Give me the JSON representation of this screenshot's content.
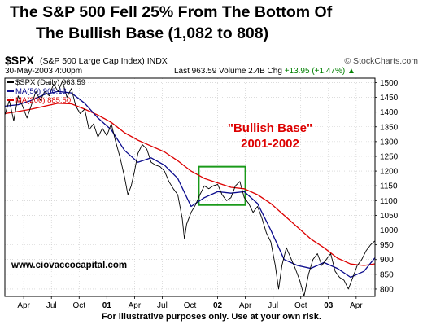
{
  "title": {
    "line1": "The S&P 500 Fell 25% From The Bottom Of",
    "line2": "The Bullish Base  (1,082 to 808)"
  },
  "header": {
    "ticker": "$SPX",
    "description": "(S&P 500 Large Cap Index) INDX",
    "date": "30-May-2003 4:00pm",
    "last": "Last 963.59",
    "volume": "Volume 2.4B",
    "chg_label": "Chg",
    "chg": "+13.95 (+1.47%)",
    "chg_arrow": "▲",
    "source": "© StockCharts.com"
  },
  "legend": {
    "price": "$SPX (Daily) 963.59",
    "ma50": "MA(50) 906.13",
    "ma200": "MA(200) 885.50"
  },
  "annotation": {
    "line1": "\"Bullish Base\"",
    "line2": "2001-2002"
  },
  "watermark": "www.ciovaccocapital.com",
  "footer": "For illustrative purposes only. Use at your own risk.",
  "colors": {
    "price": "#000000",
    "ma50": "#0a0a8c",
    "ma200": "#dd0000",
    "box": "#1a9a1a",
    "annotation": "#dd0000",
    "grid": "#c8c8c8"
  },
  "chart_data": {
    "type": "line",
    "xlabel": "",
    "ylabel": "",
    "x_ticks": [
      {
        "label": "Apr",
        "t": 2000.25
      },
      {
        "label": "Jul",
        "t": 2000.5
      },
      {
        "label": "Oct",
        "t": 2000.75
      },
      {
        "label": "01",
        "t": 2001.0,
        "bold": true
      },
      {
        "label": "Apr",
        "t": 2001.25
      },
      {
        "label": "Jul",
        "t": 2001.5
      },
      {
        "label": "Oct",
        "t": 2001.75
      },
      {
        "label": "02",
        "t": 2002.0,
        "bold": true
      },
      {
        "label": "Apr",
        "t": 2002.25
      },
      {
        "label": "Jul",
        "t": 2002.5
      },
      {
        "label": "Oct",
        "t": 2002.75
      },
      {
        "label": "03",
        "t": 2003.0,
        "bold": true
      },
      {
        "label": "Apr",
        "t": 2003.25
      }
    ],
    "y_ticks": [
      800,
      850,
      900,
      950,
      1000,
      1050,
      1100,
      1150,
      1200,
      1250,
      1300,
      1350,
      1400,
      1450,
      1500
    ],
    "xlim": [
      2000.08,
      2003.42
    ],
    "ylim": [
      775,
      1515
    ],
    "grid": true,
    "legend_position": "top-left",
    "bullish_base_box": {
      "x": [
        2001.83,
        2002.25
      ],
      "y": [
        1085,
        1215
      ]
    },
    "series": [
      {
        "name": "$SPX (Daily) 963.59",
        "color": "#000000",
        "points": [
          [
            2000.08,
            1390
          ],
          [
            2000.12,
            1440
          ],
          [
            2000.16,
            1370
          ],
          [
            2000.2,
            1455
          ],
          [
            2000.24,
            1420
          ],
          [
            2000.28,
            1380
          ],
          [
            2000.32,
            1425
          ],
          [
            2000.36,
            1470
          ],
          [
            2000.4,
            1440
          ],
          [
            2000.44,
            1470
          ],
          [
            2000.48,
            1455
          ],
          [
            2000.52,
            1495
          ],
          [
            2000.56,
            1470
          ],
          [
            2000.6,
            1505
          ],
          [
            2000.64,
            1450
          ],
          [
            2000.68,
            1480
          ],
          [
            2000.72,
            1420
          ],
          [
            2000.76,
            1395
          ],
          [
            2000.8,
            1410
          ],
          [
            2000.84,
            1340
          ],
          [
            2000.88,
            1360
          ],
          [
            2000.92,
            1315
          ],
          [
            2000.96,
            1345
          ],
          [
            2001.0,
            1320
          ],
          [
            2001.04,
            1360
          ],
          [
            2001.08,
            1300
          ],
          [
            2001.12,
            1245
          ],
          [
            2001.16,
            1180
          ],
          [
            2001.19,
            1120
          ],
          [
            2001.22,
            1150
          ],
          [
            2001.25,
            1200
          ],
          [
            2001.28,
            1260
          ],
          [
            2001.32,
            1290
          ],
          [
            2001.36,
            1275
          ],
          [
            2001.4,
            1230
          ],
          [
            2001.44,
            1220
          ],
          [
            2001.48,
            1215
          ],
          [
            2001.52,
            1200
          ],
          [
            2001.56,
            1165
          ],
          [
            2001.6,
            1140
          ],
          [
            2001.64,
            1120
          ],
          [
            2001.68,
            1040
          ],
          [
            2001.7,
            970
          ],
          [
            2001.72,
            1020
          ],
          [
            2001.76,
            1060
          ],
          [
            2001.8,
            1085
          ],
          [
            2001.84,
            1120
          ],
          [
            2001.88,
            1150
          ],
          [
            2001.92,
            1140
          ],
          [
            2001.96,
            1150
          ],
          [
            2002.0,
            1155
          ],
          [
            2002.04,
            1120
          ],
          [
            2002.08,
            1100
          ],
          [
            2002.12,
            1110
          ],
          [
            2002.16,
            1150
          ],
          [
            2002.2,
            1165
          ],
          [
            2002.24,
            1110
          ],
          [
            2002.28,
            1090
          ],
          [
            2002.32,
            1060
          ],
          [
            2002.36,
            1080
          ],
          [
            2002.4,
            1040
          ],
          [
            2002.44,
            990
          ],
          [
            2002.48,
            960
          ],
          [
            2002.52,
            880
          ],
          [
            2002.55,
            800
          ],
          [
            2002.58,
            880
          ],
          [
            2002.62,
            940
          ],
          [
            2002.66,
            905
          ],
          [
            2002.7,
            870
          ],
          [
            2002.74,
            830
          ],
          [
            2002.78,
            776
          ],
          [
            2002.82,
            850
          ],
          [
            2002.86,
            900
          ],
          [
            2002.9,
            920
          ],
          [
            2002.94,
            880
          ],
          [
            2002.98,
            900
          ],
          [
            2003.02,
            920
          ],
          [
            2003.06,
            860
          ],
          [
            2003.1,
            840
          ],
          [
            2003.14,
            830
          ],
          [
            2003.18,
            800
          ],
          [
            2003.22,
            840
          ],
          [
            2003.26,
            880
          ],
          [
            2003.3,
            900
          ],
          [
            2003.34,
            930
          ],
          [
            2003.38,
            950
          ],
          [
            2003.42,
            963.59
          ]
        ]
      },
      {
        "name": "MA(50) 906.13",
        "color": "#0a0a8c",
        "points": [
          [
            2000.08,
            1420
          ],
          [
            2000.2,
            1425
          ],
          [
            2000.32,
            1440
          ],
          [
            2000.44,
            1460
          ],
          [
            2000.56,
            1470
          ],
          [
            2000.68,
            1465
          ],
          [
            2000.8,
            1430
          ],
          [
            2000.92,
            1380
          ],
          [
            2001.04,
            1340
          ],
          [
            2001.16,
            1270
          ],
          [
            2001.28,
            1230
          ],
          [
            2001.4,
            1245
          ],
          [
            2001.52,
            1220
          ],
          [
            2001.64,
            1175
          ],
          [
            2001.76,
            1080
          ],
          [
            2001.88,
            1110
          ],
          [
            2002.0,
            1130
          ],
          [
            2002.12,
            1125
          ],
          [
            2002.24,
            1130
          ],
          [
            2002.36,
            1090
          ],
          [
            2002.48,
            1000
          ],
          [
            2002.6,
            900
          ],
          [
            2002.72,
            880
          ],
          [
            2002.84,
            870
          ],
          [
            2002.96,
            890
          ],
          [
            2003.08,
            870
          ],
          [
            2003.2,
            840
          ],
          [
            2003.32,
            860
          ],
          [
            2003.42,
            906.13
          ]
        ]
      },
      {
        "name": "MA(200) 885.50",
        "color": "#dd0000",
        "points": [
          [
            2000.08,
            1395
          ],
          [
            2000.2,
            1402
          ],
          [
            2000.32,
            1410
          ],
          [
            2000.44,
            1420
          ],
          [
            2000.56,
            1430
          ],
          [
            2000.68,
            1428
          ],
          [
            2000.8,
            1410
          ],
          [
            2000.92,
            1390
          ],
          [
            2001.04,
            1365
          ],
          [
            2001.16,
            1330
          ],
          [
            2001.28,
            1305
          ],
          [
            2001.4,
            1285
          ],
          [
            2001.52,
            1265
          ],
          [
            2001.64,
            1235
          ],
          [
            2001.76,
            1200
          ],
          [
            2001.88,
            1175
          ],
          [
            2002.0,
            1160
          ],
          [
            2002.12,
            1145
          ],
          [
            2002.24,
            1140
          ],
          [
            2002.36,
            1120
          ],
          [
            2002.48,
            1090
          ],
          [
            2002.6,
            1050
          ],
          [
            2002.72,
            1010
          ],
          [
            2002.84,
            970
          ],
          [
            2002.96,
            940
          ],
          [
            2003.08,
            905
          ],
          [
            2003.2,
            885
          ],
          [
            2003.32,
            880
          ],
          [
            2003.42,
            885.5
          ]
        ]
      }
    ]
  }
}
